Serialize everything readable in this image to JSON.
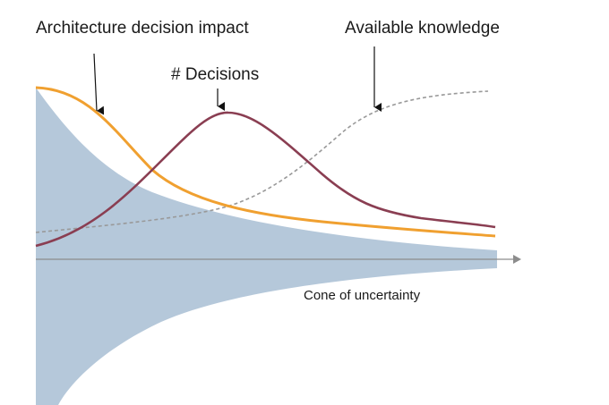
{
  "labels": {
    "architecture_decision_impact": "Architecture decision impact",
    "decisions": "# Decisions",
    "available_knowledge": "Available knowledge",
    "cone_of_uncertainty": "Cone of uncertainty"
  },
  "colors": {
    "cone": "#b5c8da",
    "impact": "#f0a030",
    "decisions": "#8a3e52",
    "knowledge": "#999999",
    "axis": "#8c8c8c",
    "arrow": "#111111"
  },
  "icons": {
    "axis_arrow": "arrow-right-icon",
    "pointer": "arrow-down-icon"
  }
}
